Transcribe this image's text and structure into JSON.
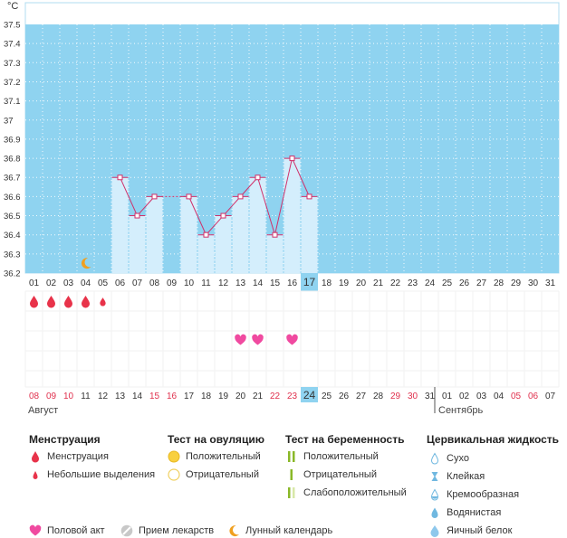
{
  "chart_data": {
    "type": "line",
    "unit_label": "°C",
    "ylim": [
      36.2,
      37.5
    ],
    "y_ticks": [
      "36.2",
      "36.3",
      "36.4",
      "36.5",
      "36.6",
      "36.7",
      "36.8",
      "36.9",
      "37",
      "37.1",
      "37.2",
      "37.3",
      "37.4",
      "37.5"
    ],
    "cycle_days": [
      "01",
      "02",
      "03",
      "04",
      "05",
      "06",
      "07",
      "08",
      "09",
      "10",
      "11",
      "12",
      "13",
      "14",
      "15",
      "16",
      "17",
      "18",
      "19",
      "20",
      "21",
      "22",
      "23",
      "24",
      "25",
      "26",
      "27",
      "28",
      "29",
      "30",
      "31"
    ],
    "highlight_cycle_day": "17",
    "temperatures": [
      {
        "day": 6,
        "value": 36.7
      },
      {
        "day": 7,
        "value": 36.5
      },
      {
        "day": 8,
        "value": 36.6
      },
      {
        "day": 10,
        "value": 36.6
      },
      {
        "day": 11,
        "value": 36.4
      },
      {
        "day": 12,
        "value": 36.5
      },
      {
        "day": 13,
        "value": 36.6
      },
      {
        "day": 14,
        "value": 36.7
      },
      {
        "day": 15,
        "value": 36.4
      },
      {
        "day": 16,
        "value": 36.8
      },
      {
        "day": 17,
        "value": 36.6
      }
    ],
    "dashed_segment": [
      8,
      10
    ],
    "menstruation_days": [
      {
        "day": 1,
        "kind": "full"
      },
      {
        "day": 2,
        "kind": "full"
      },
      {
        "day": 3,
        "kind": "full"
      },
      {
        "day": 4,
        "kind": "full"
      },
      {
        "day": 5,
        "kind": "light"
      }
    ],
    "intercourse_days": [
      13,
      14,
      16
    ],
    "moon_day": 4,
    "calendar_dates": [
      {
        "label": "08",
        "weekend": true
      },
      {
        "label": "09",
        "weekend": true
      },
      {
        "label": "10",
        "weekend": true
      },
      {
        "label": "11",
        "weekend": false
      },
      {
        "label": "12",
        "weekend": false
      },
      {
        "label": "13",
        "weekend": false
      },
      {
        "label": "14",
        "weekend": false
      },
      {
        "label": "15",
        "weekend": true
      },
      {
        "label": "16",
        "weekend": true
      },
      {
        "label": "17",
        "weekend": false
      },
      {
        "label": "18",
        "weekend": false
      },
      {
        "label": "19",
        "weekend": false
      },
      {
        "label": "20",
        "weekend": false
      },
      {
        "label": "21",
        "weekend": false
      },
      {
        "label": "22",
        "weekend": true
      },
      {
        "label": "23",
        "weekend": true
      },
      {
        "label": "24",
        "weekend": false,
        "today": true
      },
      {
        "label": "25",
        "weekend": false
      },
      {
        "label": "26",
        "weekend": false
      },
      {
        "label": "27",
        "weekend": false
      },
      {
        "label": "28",
        "weekend": false
      },
      {
        "label": "29",
        "weekend": true
      },
      {
        "label": "30",
        "weekend": true
      },
      {
        "label": "31",
        "weekend": false
      },
      {
        "label": "01",
        "weekend": false
      },
      {
        "label": "02",
        "weekend": false
      },
      {
        "label": "03",
        "weekend": false
      },
      {
        "label": "04",
        "weekend": false
      },
      {
        "label": "05",
        "weekend": true
      },
      {
        "label": "06",
        "weekend": true
      },
      {
        "label": "07",
        "weekend": false
      }
    ],
    "month_left": "Август",
    "month_right": "Сентябрь",
    "month_split_after_index": 23
  },
  "colors": {
    "plot_bg": "#8fd3f0",
    "bar_fill": "#d4eefc",
    "line": "#d0306a",
    "marker_fill": "#ffffff",
    "grid_dot": "#ffffff",
    "weekend": "#e0304d",
    "today_bg": "#8fd3f0",
    "drop": "#e8334a",
    "heart": "#f04aa0",
    "moon": "#f0a020"
  },
  "legend": {
    "menstruation": {
      "title": "Менструация",
      "items": [
        "Менструация",
        "Небольшие выделения"
      ]
    },
    "ovulation": {
      "title": "Тест на овуляцию",
      "items": [
        "Положительный",
        "Отрицательный"
      ]
    },
    "pregnancy": {
      "title": "Тест на беременность",
      "items": [
        "Положительный",
        "Отрицательный",
        "Слабоположительный"
      ]
    },
    "cervical": {
      "title": "Цервикальная жидкость",
      "items": [
        "Сухо",
        "Клейкая",
        "Кремообразная",
        "Водянистая",
        "Яичный белок"
      ]
    },
    "bottom": [
      "Половой акт",
      "Прием лекарств",
      "Лунный календарь"
    ]
  }
}
